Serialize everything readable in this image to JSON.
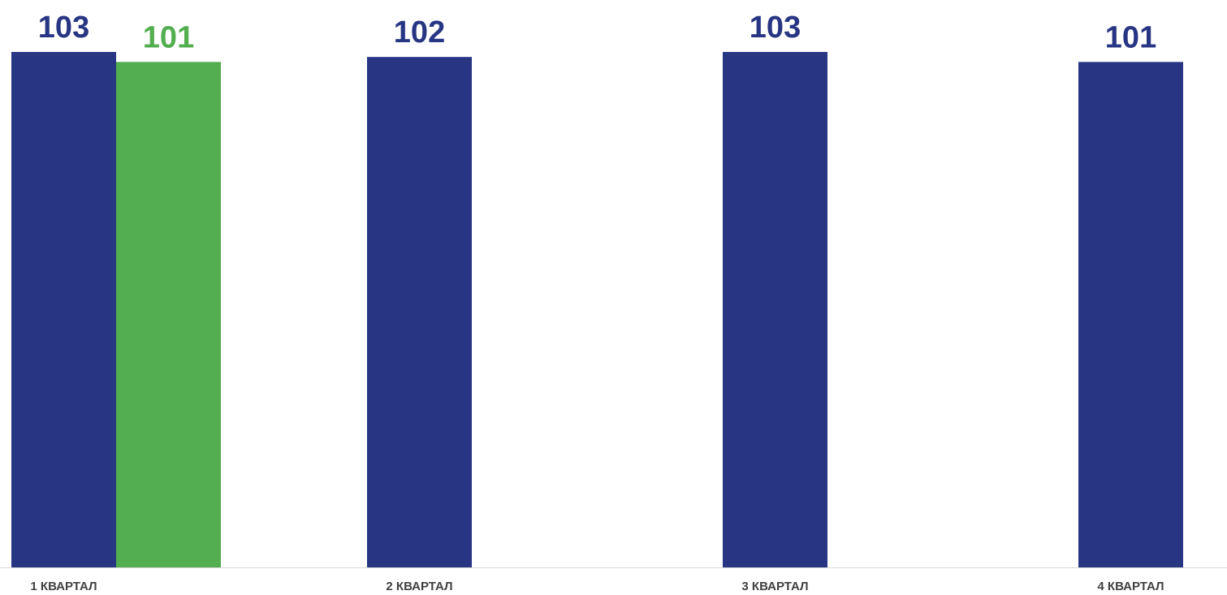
{
  "chart_data": {
    "type": "bar",
    "categories": [
      "1 КВАРТАЛ",
      "2 КВАРТАЛ",
      "3 КВАРТАЛ",
      "4 КВАРТАЛ"
    ],
    "series": [
      {
        "values": [
          103,
          102,
          103,
          101
        ],
        "color": "#283583"
      },
      {
        "values": [
          101,
          null,
          null,
          null
        ],
        "color": "#52AE4F"
      }
    ],
    "ylim": [
      0,
      103
    ],
    "grid": false,
    "legend": "none",
    "data_labels": true
  }
}
